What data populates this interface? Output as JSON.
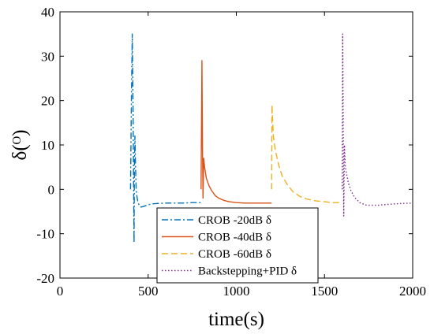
{
  "chart_data": {
    "type": "line",
    "title": "",
    "xlabel": "time(s)",
    "ylabel": "δ(ᴼ)",
    "xlim": [
      0,
      2000
    ],
    "ylim": [
      -20,
      40
    ],
    "xticks": [
      0,
      500,
      1000,
      1500,
      2000
    ],
    "yticks": [
      -20,
      -10,
      0,
      10,
      20,
      30,
      40
    ],
    "xtick_labels": [
      "0",
      "500",
      "1000",
      "1500",
      "2000"
    ],
    "ytick_labels": [
      "-20",
      "-10",
      "0",
      "10",
      "20",
      "30",
      "40"
    ],
    "grid": false,
    "legend_position": "bottom-center",
    "series": [
      {
        "name": "CROB -20dB δ",
        "color": "#0072BD",
        "dash": "dashdot",
        "x": [
          400,
          405,
          410,
          415,
          420,
          422,
          425,
          428,
          432,
          436,
          440,
          445,
          452,
          460,
          470,
          485,
          500,
          520,
          550,
          600,
          650,
          700,
          750,
          800
        ],
        "y": [
          0,
          20,
          35,
          15,
          -12,
          5,
          12,
          6,
          0,
          -1.5,
          -2.5,
          -3.2,
          -3.8,
          -4,
          -3.9,
          -3.7,
          -3.5,
          -3.3,
          -3.2,
          -3.1,
          -3.1,
          -3.1,
          -3.0,
          -3.0
        ]
      },
      {
        "name": "CROB -40dB δ",
        "color": "#D95319",
        "dash": "solid",
        "x": [
          800,
          805,
          808,
          811,
          815,
          820,
          830,
          845,
          860,
          880,
          900,
          930,
          960,
          1000,
          1050,
          1100,
          1150,
          1200
        ],
        "y": [
          0,
          29,
          10,
          -2,
          7,
          5,
          2.5,
          0.8,
          -0.3,
          -1.4,
          -2,
          -2.5,
          -2.8,
          -3,
          -3.1,
          -3.1,
          -3.1,
          -3.1
        ]
      },
      {
        "name": "CROB -60dB δ",
        "color": "#EDB120",
        "dash": "dashed",
        "x": [
          1200,
          1202,
          1210,
          1220,
          1240,
          1260,
          1290,
          1320,
          1360,
          1400,
          1450,
          1500,
          1550,
          1600
        ],
        "y": [
          0,
          19,
          12,
          9,
          5.5,
          3,
          1,
          -0.5,
          -1.6,
          -2.2,
          -2.6,
          -2.8,
          -3,
          -3
        ]
      },
      {
        "name": "Backstepping+PID δ",
        "color": "#7E2F8E",
        "dash": "dotted",
        "x": [
          1600,
          1603,
          1606,
          1609,
          1613,
          1618,
          1625,
          1635,
          1650,
          1670,
          1700,
          1740,
          1800,
          1860,
          1930,
          2000
        ],
        "y": [
          0,
          35,
          15,
          -6,
          10,
          5,
          3.5,
          1.5,
          -0.3,
          -1.8,
          -3,
          -3.6,
          -3.6,
          -3.4,
          -3.2,
          -3.1
        ]
      }
    ]
  }
}
